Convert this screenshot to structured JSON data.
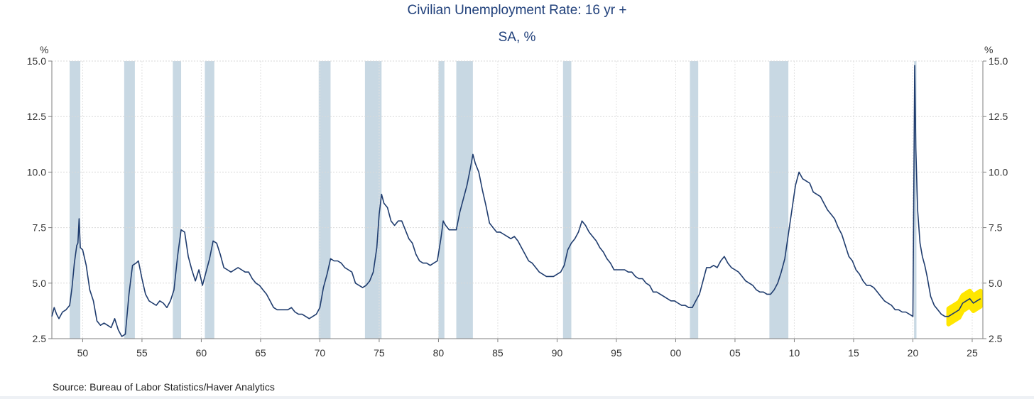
{
  "chart_data": {
    "type": "line",
    "title": "Civilian Unemployment Rate: 16 yr +",
    "subtitle": "SA, %",
    "ylabel_left": "%",
    "ylabel_right": "%",
    "source": "Source:  Bureau of Labor Statistics/Haver Analytics",
    "xlim": [
      1947.4,
      2025.9
    ],
    "ylim": [
      2.5,
      15.0
    ],
    "yticks": [
      "15.0",
      "12.5",
      "10.0",
      "7.5",
      "5.0",
      "2.5"
    ],
    "ytick_values": [
      15.0,
      12.5,
      10.0,
      7.5,
      5.0,
      2.5
    ],
    "xticks": [
      "50",
      "55",
      "60",
      "65",
      "70",
      "75",
      "80",
      "85",
      "90",
      "95",
      "00",
      "05",
      "10",
      "15",
      "20",
      "25"
    ],
    "xtick_values": [
      1950,
      1955,
      1960,
      1965,
      1970,
      1975,
      1980,
      1985,
      1990,
      1995,
      2000,
      2005,
      2010,
      2015,
      2020,
      2025
    ],
    "recessions": [
      [
        1948.9,
        1949.8
      ],
      [
        1953.5,
        1954.4
      ],
      [
        1957.6,
        1958.3
      ],
      [
        1960.3,
        1961.1
      ],
      [
        1969.9,
        1970.9
      ],
      [
        1973.8,
        1975.2
      ],
      [
        1980.0,
        1980.5
      ],
      [
        1981.5,
        1982.9
      ],
      [
        1990.5,
        1991.2
      ],
      [
        2001.2,
        2001.9
      ],
      [
        2007.9,
        2009.5
      ],
      [
        2020.1,
        2020.3
      ]
    ],
    "series": [
      {
        "name": "Civilian Unemployment Rate: 16 yr +",
        "color": "#1f3c6e",
        "x": [
          1947.4,
          1947.6,
          1947.8,
          1948.0,
          1948.3,
          1948.6,
          1948.9,
          1949.1,
          1949.3,
          1949.5,
          1949.6,
          1949.7,
          1949.8,
          1950.0,
          1950.3,
          1950.6,
          1950.9,
          1951.2,
          1951.5,
          1951.8,
          1952.1,
          1952.4,
          1952.7,
          1953.0,
          1953.3,
          1953.6,
          1953.9,
          1954.2,
          1954.5,
          1954.7,
          1955.0,
          1955.3,
          1955.6,
          1955.9,
          1956.2,
          1956.5,
          1956.8,
          1957.1,
          1957.4,
          1957.7,
          1958.0,
          1958.3,
          1958.6,
          1958.9,
          1959.2,
          1959.5,
          1959.8,
          1960.1,
          1960.4,
          1960.7,
          1961.0,
          1961.3,
          1961.6,
          1961.9,
          1962.2,
          1962.5,
          1962.8,
          1963.1,
          1963.4,
          1963.7,
          1964.0,
          1964.3,
          1964.6,
          1964.9,
          1965.2,
          1965.5,
          1965.8,
          1966.1,
          1966.4,
          1966.7,
          1967.0,
          1967.3,
          1967.6,
          1967.9,
          1968.2,
          1968.5,
          1968.8,
          1969.1,
          1969.4,
          1969.7,
          1970.0,
          1970.3,
          1970.6,
          1970.9,
          1971.2,
          1971.5,
          1971.8,
          1972.1,
          1972.4,
          1972.7,
          1973.0,
          1973.3,
          1973.6,
          1973.9,
          1974.2,
          1974.5,
          1974.8,
          1975.0,
          1975.2,
          1975.4,
          1975.7,
          1976.0,
          1976.3,
          1976.6,
          1976.9,
          1977.2,
          1977.5,
          1977.8,
          1978.1,
          1978.4,
          1978.7,
          1979.0,
          1979.3,
          1979.6,
          1979.9,
          1980.2,
          1980.4,
          1980.6,
          1980.9,
          1981.2,
          1981.5,
          1981.8,
          1982.1,
          1982.4,
          1982.7,
          1982.9,
          1983.1,
          1983.4,
          1983.7,
          1984.0,
          1984.3,
          1984.6,
          1984.9,
          1985.2,
          1985.5,
          1985.8,
          1986.1,
          1986.4,
          1986.7,
          1987.0,
          1987.3,
          1987.6,
          1987.9,
          1988.2,
          1988.5,
          1988.8,
          1989.1,
          1989.4,
          1989.7,
          1990.0,
          1990.3,
          1990.6,
          1990.9,
          1991.2,
          1991.5,
          1991.8,
          1992.1,
          1992.4,
          1992.7,
          1993.0,
          1993.3,
          1993.6,
          1993.9,
          1994.2,
          1994.5,
          1994.8,
          1995.1,
          1995.4,
          1995.7,
          1996.0,
          1996.3,
          1996.6,
          1996.9,
          1997.2,
          1997.5,
          1997.8,
          1998.1,
          1998.4,
          1998.7,
          1999.0,
          1999.3,
          1999.6,
          1999.9,
          2000.2,
          2000.5,
          2000.8,
          2001.1,
          2001.4,
          2001.7,
          2002.0,
          2002.3,
          2002.6,
          2002.9,
          2003.2,
          2003.5,
          2003.8,
          2004.1,
          2004.4,
          2004.7,
          2005.0,
          2005.3,
          2005.6,
          2005.9,
          2006.2,
          2006.5,
          2006.8,
          2007.1,
          2007.4,
          2007.7,
          2008.0,
          2008.3,
          2008.6,
          2008.9,
          2009.2,
          2009.5,
          2009.8,
          2010.1,
          2010.4,
          2010.7,
          2011.0,
          2011.3,
          2011.6,
          2011.9,
          2012.2,
          2012.5,
          2012.8,
          2013.1,
          2013.4,
          2013.7,
          2014.0,
          2014.3,
          2014.6,
          2014.9,
          2015.2,
          2015.5,
          2015.8,
          2016.1,
          2016.4,
          2016.7,
          2017.0,
          2017.3,
          2017.6,
          2017.9,
          2018.2,
          2018.5,
          2018.8,
          2019.1,
          2019.4,
          2019.7,
          2020.0,
          2020.15,
          2020.25,
          2020.4,
          2020.6,
          2020.8,
          2021.0,
          2021.2,
          2021.5,
          2021.8,
          2022.1,
          2022.4,
          2022.7,
          2023.0,
          2023.3,
          2023.6,
          2023.9,
          2024.2,
          2024.5,
          2024.8,
          2025.1,
          2025.4,
          2025.7
        ],
        "values": [
          3.5,
          3.9,
          3.6,
          3.4,
          3.7,
          3.8,
          4.0,
          4.8,
          5.9,
          6.7,
          6.8,
          7.9,
          6.6,
          6.5,
          5.8,
          4.7,
          4.2,
          3.3,
          3.1,
          3.2,
          3.1,
          3.0,
          3.4,
          2.9,
          2.6,
          2.7,
          4.5,
          5.8,
          5.9,
          6.0,
          5.2,
          4.5,
          4.2,
          4.1,
          4.0,
          4.2,
          4.1,
          3.9,
          4.2,
          4.7,
          6.2,
          7.4,
          7.3,
          6.2,
          5.6,
          5.1,
          5.6,
          4.9,
          5.5,
          6.1,
          6.9,
          6.8,
          6.3,
          5.7,
          5.6,
          5.5,
          5.6,
          5.7,
          5.6,
          5.5,
          5.5,
          5.2,
          5.0,
          4.9,
          4.7,
          4.5,
          4.2,
          3.9,
          3.8,
          3.8,
          3.8,
          3.8,
          3.9,
          3.7,
          3.6,
          3.6,
          3.5,
          3.4,
          3.5,
          3.6,
          3.9,
          4.8,
          5.4,
          6.1,
          6.0,
          6.0,
          5.9,
          5.7,
          5.6,
          5.5,
          5.0,
          4.9,
          4.8,
          4.9,
          5.1,
          5.5,
          6.6,
          8.1,
          9.0,
          8.6,
          8.4,
          7.8,
          7.6,
          7.8,
          7.8,
          7.4,
          7.0,
          6.8,
          6.3,
          6.0,
          5.9,
          5.9,
          5.8,
          5.9,
          6.0,
          7.0,
          7.8,
          7.6,
          7.4,
          7.4,
          7.4,
          8.2,
          8.8,
          9.4,
          10.2,
          10.8,
          10.4,
          10.0,
          9.2,
          8.5,
          7.7,
          7.5,
          7.3,
          7.3,
          7.2,
          7.1,
          7.0,
          7.1,
          6.9,
          6.6,
          6.3,
          6.0,
          5.9,
          5.7,
          5.5,
          5.4,
          5.3,
          5.3,
          5.3,
          5.4,
          5.5,
          5.8,
          6.5,
          6.8,
          7.0,
          7.3,
          7.8,
          7.6,
          7.3,
          7.1,
          6.9,
          6.6,
          6.4,
          6.1,
          5.9,
          5.6,
          5.6,
          5.6,
          5.6,
          5.5,
          5.5,
          5.3,
          5.2,
          5.2,
          5.0,
          4.9,
          4.6,
          4.6,
          4.5,
          4.4,
          4.3,
          4.2,
          4.2,
          4.1,
          4.0,
          4.0,
          3.9,
          3.9,
          4.2,
          4.5,
          5.1,
          5.7,
          5.7,
          5.8,
          5.7,
          6.0,
          6.2,
          5.9,
          5.7,
          5.6,
          5.5,
          5.3,
          5.1,
          5.0,
          4.9,
          4.7,
          4.6,
          4.6,
          4.5,
          4.5,
          4.7,
          5.0,
          5.5,
          6.1,
          7.2,
          8.3,
          9.4,
          10.0,
          9.7,
          9.6,
          9.5,
          9.1,
          9.0,
          8.9,
          8.6,
          8.3,
          8.1,
          7.9,
          7.5,
          7.2,
          6.7,
          6.2,
          6.0,
          5.6,
          5.4,
          5.1,
          4.9,
          4.9,
          4.8,
          4.6,
          4.4,
          4.2,
          4.1,
          4.0,
          3.8,
          3.8,
          3.7,
          3.7,
          3.6,
          3.5,
          14.8,
          11.1,
          8.3,
          6.8,
          6.2,
          5.8,
          5.3,
          4.4,
          4.0,
          3.8,
          3.6,
          3.5,
          3.5,
          3.6,
          3.7,
          3.8,
          4.1,
          4.2,
          4.3,
          4.1,
          4.2,
          4.3
        ]
      }
    ],
    "highlight": {
      "x_start": 2022.8,
      "x_end": 2025.9,
      "color": "#ffe600"
    }
  }
}
